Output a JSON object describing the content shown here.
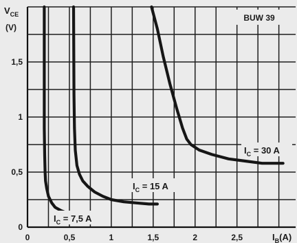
{
  "chart_data": {
    "type": "line",
    "title": "BUW 39",
    "ylabel": {
      "main": "V",
      "sub": "CE",
      "unit": "(V)"
    },
    "xlabel": {
      "main": "I",
      "sub": "B",
      "unit": "(A)"
    },
    "xlim": [
      0,
      3.2
    ],
    "ylim": [
      0,
      2.0
    ],
    "x_ticks": [
      0,
      0.5,
      1,
      1.5,
      2,
      2.5
    ],
    "x_tick_labels": [
      "0",
      "0,5",
      "1",
      "1,5",
      "2",
      "2,5"
    ],
    "y_ticks": [
      0,
      0.5,
      1,
      1.5
    ],
    "y_tick_labels": [
      "0",
      "0,5",
      "1",
      "1,5"
    ],
    "x_grid": [
      0,
      0.25,
      0.5,
      0.75,
      1,
      1.25,
      1.5,
      1.75,
      2,
      2.25,
      2.5,
      2.75,
      3
    ],
    "y_grid": [
      0,
      0.25,
      0.5,
      0.75,
      1,
      1.25,
      1.5,
      1.75,
      2
    ],
    "grid": true,
    "series": [
      {
        "name": "IC = 7,5 A",
        "label": {
          "main": "I",
          "sub": "C",
          "text": " = 7,5 A"
        },
        "x": [
          0.2,
          0.2,
          0.205,
          0.21,
          0.215,
          0.23,
          0.25,
          0.29,
          0.33,
          0.4,
          0.5,
          0.6,
          0.7,
          0.75
        ],
        "y": [
          2.0,
          0.9,
          0.65,
          0.5,
          0.42,
          0.35,
          0.28,
          0.22,
          0.18,
          0.15,
          0.12,
          0.11,
          0.1,
          0.1
        ]
      },
      {
        "name": "IC = 15 A",
        "label": {
          "main": "I",
          "sub": "C",
          "text": " = 15 A"
        },
        "x": [
          0.55,
          0.555,
          0.56,
          0.57,
          0.59,
          0.62,
          0.66,
          0.72,
          0.8,
          0.9,
          1,
          1.15,
          1.3,
          1.45,
          1.55
        ],
        "y": [
          2.0,
          1.2,
          0.9,
          0.7,
          0.56,
          0.48,
          0.42,
          0.37,
          0.32,
          0.28,
          0.25,
          0.23,
          0.22,
          0.21,
          0.21
        ]
      },
      {
        "name": "IC = 30 A",
        "label": {
          "main": "I",
          "sub": "C",
          "text": " = 30 A"
        },
        "x": [
          1.48,
          1.55,
          1.62,
          1.7,
          1.78,
          1.85,
          1.9,
          1.95,
          2.05,
          2.2,
          2.4,
          2.6,
          2.8,
          3.05
        ],
        "y": [
          2.0,
          1.8,
          1.55,
          1.3,
          1.08,
          0.9,
          0.8,
          0.75,
          0.7,
          0.66,
          0.62,
          0.6,
          0.58,
          0.58
        ]
      }
    ]
  }
}
